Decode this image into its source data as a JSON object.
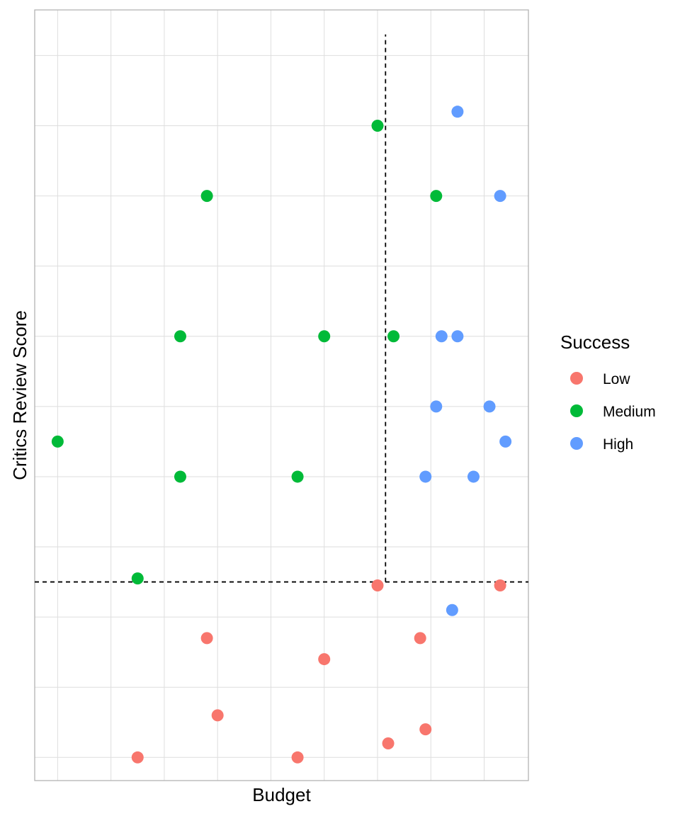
{
  "chart_data": {
    "type": "scatter",
    "title": "",
    "xlabel": "Budget",
    "ylabel": "Critics Review Score",
    "x_ticks": [
      -4,
      -3,
      -2,
      -1,
      0,
      1,
      2,
      3,
      4
    ],
    "y_ticks": [
      -4,
      -3,
      -2,
      -1,
      0,
      1,
      2,
      3,
      4,
      5,
      6
    ],
    "xlim": [
      -4.43,
      4.83
    ],
    "ylim": [
      -4.33,
      6.65
    ],
    "tick_labels_visible": false,
    "grid": true,
    "reference_lines": [
      {
        "orientation": "horizontal",
        "y": -1.5,
        "x_from": -4.43,
        "x_to": 4.83,
        "style": "dashed"
      },
      {
        "orientation": "vertical",
        "x": 2.15,
        "y_from": -1.5,
        "y_to": 6.3,
        "style": "dashed"
      }
    ],
    "legend": {
      "title": "Success",
      "position": "right",
      "entries": [
        {
          "name": "Low",
          "color": "#F8766D"
        },
        {
          "name": "Medium",
          "color": "#00BA38"
        },
        {
          "name": "High",
          "color": "#619CFF"
        }
      ]
    },
    "series": [
      {
        "name": "Low",
        "color": "#F8766D",
        "points": [
          {
            "x": -2.5,
            "y": -4.0
          },
          {
            "x": 0.5,
            "y": -4.0
          },
          {
            "x": -1.0,
            "y": -3.4
          },
          {
            "x": -1.2,
            "y": -2.3
          },
          {
            "x": 1.0,
            "y": -2.6
          },
          {
            "x": 2.0,
            "y": -1.55
          },
          {
            "x": 2.8,
            "y": -2.3
          },
          {
            "x": 2.9,
            "y": -3.6
          },
          {
            "x": 2.2,
            "y": -3.8
          },
          {
            "x": 4.3,
            "y": -1.55
          }
        ]
      },
      {
        "name": "Medium",
        "color": "#00BA38",
        "points": [
          {
            "x": -4.0,
            "y": 0.5
          },
          {
            "x": -2.5,
            "y": -1.45
          },
          {
            "x": -1.7,
            "y": 0.0
          },
          {
            "x": 0.5,
            "y": 0.0
          },
          {
            "x": -1.7,
            "y": 2.0
          },
          {
            "x": 1.0,
            "y": 2.0
          },
          {
            "x": 2.3,
            "y": 2.0
          },
          {
            "x": -1.2,
            "y": 4.0
          },
          {
            "x": 3.1,
            "y": 4.0
          },
          {
            "x": 2.0,
            "y": 5.0
          }
        ]
      },
      {
        "name": "High",
        "color": "#619CFF",
        "points": [
          {
            "x": 3.5,
            "y": 5.2
          },
          {
            "x": 4.3,
            "y": 4.0
          },
          {
            "x": 3.2,
            "y": 2.0
          },
          {
            "x": 3.5,
            "y": 2.0
          },
          {
            "x": 3.1,
            "y": 1.0
          },
          {
            "x": 4.1,
            "y": 1.0
          },
          {
            "x": 4.4,
            "y": 0.5
          },
          {
            "x": 2.9,
            "y": 0.0
          },
          {
            "x": 3.8,
            "y": 0.0
          },
          {
            "x": 3.4,
            "y": -1.9
          }
        ]
      }
    ]
  }
}
